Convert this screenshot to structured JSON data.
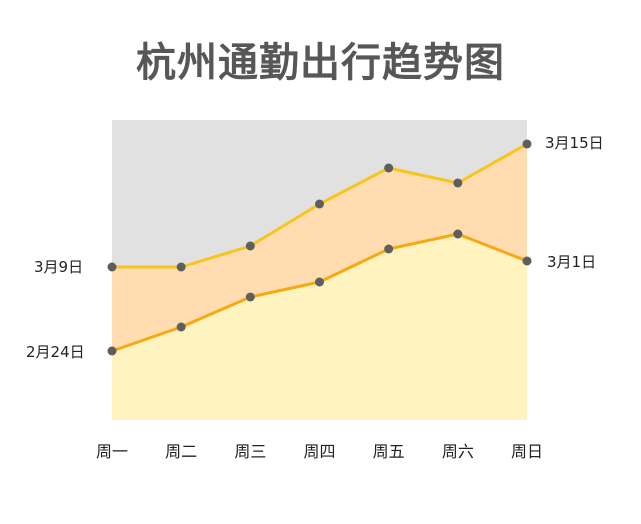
{
  "chart_data": {
    "type": "area",
    "title": "杭州通勤出行趋势图",
    "xlabel": "",
    "ylabel": "",
    "categories": [
      "周一",
      "周二",
      "周三",
      "周四",
      "周五",
      "周六",
      "周日"
    ],
    "ylim": [
      0,
      100
    ],
    "grid": false,
    "series": [
      {
        "name": "2月24日",
        "values": [
          23,
          31,
          41,
          46,
          57,
          62,
          53
        ],
        "fill": "#fff4bf",
        "line": "#f5a915"
      },
      {
        "name": "3月9日",
        "values": [
          51,
          51,
          58,
          72,
          84,
          79,
          92
        ],
        "fill": "#ffddb0",
        "line": "#f7c51e"
      },
      {
        "name": "3月1日",
        "values": [
          23,
          31,
          41,
          46,
          57,
          62,
          53
        ],
        "fill": "#fff4bf",
        "line": "#f5a915"
      },
      {
        "name": "3月15日",
        "values": [
          51,
          51,
          58,
          72,
          84,
          79,
          92
        ],
        "fill": "#ffddb0",
        "line": "#f7c51e"
      }
    ],
    "left_labels": [
      "3月9日",
      "2月24日"
    ],
    "right_labels": [
      "3月15日",
      "3月1日"
    ],
    "background_color": "#e1e1e1",
    "marker_color": "#5e5e5e"
  }
}
